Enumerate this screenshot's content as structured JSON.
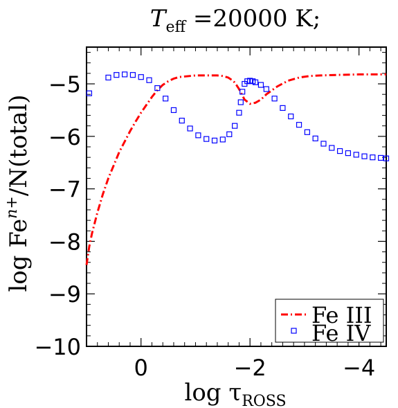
{
  "chart_data": {
    "type": "line",
    "title": {
      "prefix": "T",
      "sub": "eff",
      "suffix": " =20000 K;"
    },
    "xlabel": {
      "main": "log τ",
      "sub": "ROSS"
    },
    "ylabel": {
      "main": "log Fe",
      "sup": "n+",
      "suffix": "/N(total)"
    },
    "xlim": [
      1.0,
      -4.5
    ],
    "ylim": [
      -10,
      -4.3
    ],
    "xticks": [
      {
        "value": 0,
        "label": "0"
      },
      {
        "value": -2,
        "label": "−2"
      },
      {
        "value": -4,
        "label": "−4"
      }
    ],
    "yticks": [
      {
        "value": -5,
        "label": "−5"
      },
      {
        "value": -6,
        "label": "−6"
      },
      {
        "value": -7,
        "label": "−7"
      },
      {
        "value": -8,
        "label": "−8"
      },
      {
        "value": -9,
        "label": "−9"
      },
      {
        "value": -10,
        "label": "−10"
      }
    ],
    "legend_position": "bottom-right",
    "series": [
      {
        "name": "Fe III",
        "style": "dashdot",
        "color": "#ff0000",
        "x": [
          1.0,
          0.95,
          0.9,
          0.8,
          0.7,
          0.6,
          0.5,
          0.4,
          0.3,
          0.2,
          0.1,
          0.0,
          -0.1,
          -0.2,
          -0.3,
          -0.4,
          -0.5,
          -0.6,
          -0.7,
          -0.8,
          -0.9,
          -1.0,
          -1.2,
          -1.4,
          -1.5,
          -1.6,
          -1.7,
          -1.75,
          -1.8,
          -1.85,
          -1.9,
          -2.0,
          -2.1,
          -2.2,
          -2.3,
          -2.5,
          -2.7,
          -2.9,
          -3.1,
          -3.3,
          -3.6,
          -4.0,
          -4.5
        ],
        "y": [
          -8.45,
          -8.1,
          -7.85,
          -7.45,
          -7.1,
          -6.8,
          -6.55,
          -6.3,
          -6.1,
          -5.9,
          -5.72,
          -5.55,
          -5.4,
          -5.25,
          -5.12,
          -5.02,
          -4.95,
          -4.9,
          -4.87,
          -4.86,
          -4.85,
          -4.84,
          -4.84,
          -4.84,
          -4.85,
          -4.88,
          -4.95,
          -5.02,
          -5.1,
          -5.2,
          -5.3,
          -5.38,
          -5.36,
          -5.3,
          -5.2,
          -5.05,
          -4.94,
          -4.88,
          -4.85,
          -4.84,
          -4.83,
          -4.82,
          -4.82
        ]
      },
      {
        "name": "Fe IV",
        "style": "squares",
        "color": "#0000ff",
        "x": [
          0.95,
          0.6,
          0.45,
          0.3,
          0.15,
          0.0,
          -0.15,
          -0.3,
          -0.45,
          -0.6,
          -0.75,
          -0.9,
          -1.05,
          -1.2,
          -1.35,
          -1.5,
          -1.62,
          -1.72,
          -1.8,
          -1.83,
          -1.86,
          -1.9,
          -1.95,
          -2.0,
          -2.05,
          -2.1,
          -2.2,
          -2.3,
          -2.45,
          -2.6,
          -2.75,
          -2.9,
          -3.05,
          -3.2,
          -3.35,
          -3.5,
          -3.65,
          -3.8,
          -3.95,
          -4.1,
          -4.25,
          -4.4,
          -4.5
        ],
        "y": [
          -5.18,
          -4.88,
          -4.83,
          -4.82,
          -4.83,
          -4.87,
          -4.93,
          -5.08,
          -5.28,
          -5.5,
          -5.7,
          -5.85,
          -5.98,
          -6.05,
          -6.08,
          -6.06,
          -5.96,
          -5.8,
          -5.55,
          -5.35,
          -5.15,
          -5.0,
          -4.95,
          -4.94,
          -4.95,
          -4.97,
          -5.02,
          -5.1,
          -5.28,
          -5.46,
          -5.62,
          -5.78,
          -5.92,
          -6.04,
          -6.14,
          -6.22,
          -6.28,
          -6.32,
          -6.35,
          -6.38,
          -6.4,
          -6.41,
          -6.42
        ]
      }
    ]
  }
}
